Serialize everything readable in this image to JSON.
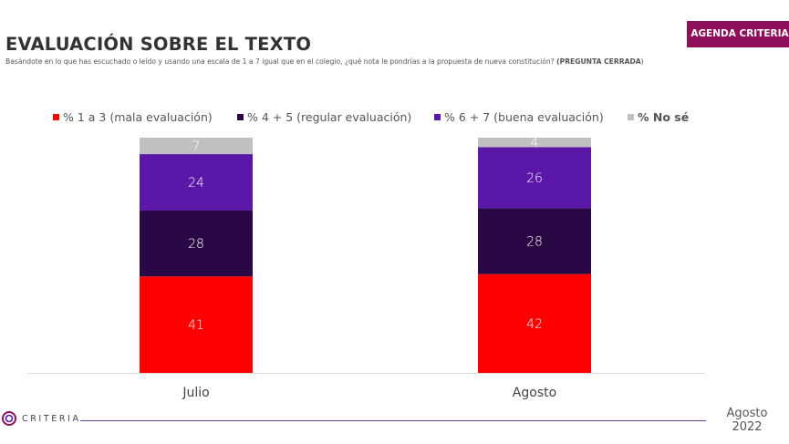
{
  "badge": "AGENDA CRITERIA",
  "title": "EVALUACIÓN SOBRE EL TEXTO",
  "question": {
    "text": "Basándote en lo que has escuchado o leído y usando una escala de 1 a 7 igual que en el colegio, ¿qué nota le pondrías a la propuesta de nueva constitución?",
    "emphasis": "(PREGUNTA CERRADA",
    "close": ")"
  },
  "footer": {
    "logo_text": "CRITERIA",
    "date_month": "Agosto",
    "date_year": "2022"
  },
  "chart_data": {
    "type": "bar",
    "stacked": true,
    "categories": [
      "Julio",
      "Agosto"
    ],
    "series": [
      {
        "name": "% 1 a 3 (mala evaluación)",
        "values": [
          41,
          42
        ],
        "color": "#ff0000"
      },
      {
        "name": "% 4 + 5 (regular evaluación)",
        "values": [
          28,
          28
        ],
        "color": "#2a0845"
      },
      {
        "name": "% 6 + 7 (buena evaluación)",
        "values": [
          24,
          26
        ],
        "color": "#5b17a8"
      },
      {
        "name": "% No sé",
        "values": [
          7,
          4
        ],
        "color": "#c0c0c0"
      }
    ],
    "ylim": [
      0,
      100
    ],
    "legend_position": "top",
    "grid": false
  }
}
